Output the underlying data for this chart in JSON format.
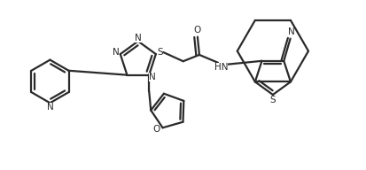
{
  "bg_color": "#ffffff",
  "line_color": "#2a2a2a",
  "line_width": 1.6,
  "figsize": [
    4.13,
    1.92
  ],
  "dpi": 100,
  "atoms": {
    "N_labels": [
      "N",
      "N",
      "N",
      "N",
      "HN",
      "N",
      "O",
      "S",
      "S"
    ],
    "fontsize": 7.5
  }
}
